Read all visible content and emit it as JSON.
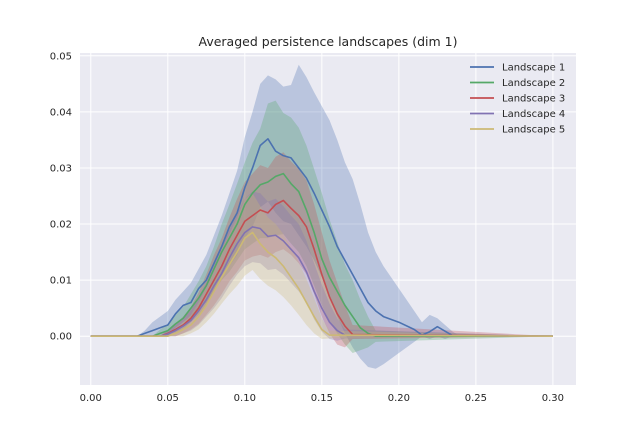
{
  "chart_data": {
    "type": "line",
    "title": "Averaged persistence landscapes (dim 1)",
    "xlabel": "",
    "ylabel": "",
    "xlim": [
      -0.007,
      0.315
    ],
    "ylim": [
      -0.0087,
      0.0505
    ],
    "xticks": [
      0.0,
      0.05,
      0.1,
      0.15,
      0.2,
      0.25,
      0.3
    ],
    "xtick_labels": [
      "0.00",
      "0.05",
      "0.10",
      "0.15",
      "0.20",
      "0.25",
      "0.30"
    ],
    "yticks": [
      0.0,
      0.01,
      0.02,
      0.03,
      0.04,
      0.05
    ],
    "ytick_labels": [
      "0.00",
      "0.01",
      "0.02",
      "0.03",
      "0.04",
      "0.05"
    ],
    "grid": true,
    "legend_position": "top-right",
    "bands": "mean ± standard deviation (shaded)",
    "series": [
      {
        "name": "Landscape 1",
        "color": "#4c72b0",
        "x": [
          0,
          0.03,
          0.035,
          0.04,
          0.045,
          0.05,
          0.055,
          0.06,
          0.065,
          0.07,
          0.075,
          0.08,
          0.085,
          0.09,
          0.095,
          0.1,
          0.105,
          0.11,
          0.115,
          0.12,
          0.125,
          0.13,
          0.135,
          0.14,
          0.145,
          0.15,
          0.155,
          0.16,
          0.165,
          0.17,
          0.175,
          0.18,
          0.185,
          0.19,
          0.2,
          0.21,
          0.215,
          0.22,
          0.225,
          0.23,
          0.235,
          0.24,
          0.3
        ],
        "y": [
          0,
          0,
          0.0005,
          0.001,
          0.0015,
          0.002,
          0.004,
          0.0055,
          0.006,
          0.0085,
          0.01,
          0.013,
          0.016,
          0.0195,
          0.022,
          0.0265,
          0.03,
          0.034,
          0.0352,
          0.033,
          0.0322,
          0.0318,
          0.03,
          0.0282,
          0.0255,
          0.0225,
          0.0195,
          0.016,
          0.0135,
          0.011,
          0.0085,
          0.006,
          0.0045,
          0.0035,
          0.0025,
          0.0012,
          0.0002,
          0.0008,
          0.0017,
          0.0009,
          0.0001,
          0,
          0
        ],
        "lower": [
          0,
          0,
          0,
          0,
          0,
          0,
          0.0015,
          0.0025,
          0.0035,
          0.005,
          0.006,
          0.008,
          0.0105,
          0.0125,
          0.0145,
          0.0175,
          0.0195,
          0.023,
          0.024,
          0.022,
          0.0205,
          0.02,
          0.018,
          0.016,
          0.0135,
          0.0105,
          0.007,
          0.0035,
          0.0005,
          -0.002,
          -0.004,
          -0.0055,
          -0.0058,
          -0.005,
          -0.003,
          -0.001,
          0,
          -0.0005,
          0,
          -0.0005,
          0,
          0,
          0
        ],
        "upper": [
          0,
          0,
          0.001,
          0.0025,
          0.0035,
          0.0045,
          0.0065,
          0.008,
          0.0095,
          0.012,
          0.0145,
          0.018,
          0.0215,
          0.0255,
          0.0295,
          0.0355,
          0.04,
          0.045,
          0.0465,
          0.0458,
          0.0445,
          0.0448,
          0.0484,
          0.0462,
          0.0435,
          0.041,
          0.0385,
          0.035,
          0.031,
          0.028,
          0.0235,
          0.0185,
          0.015,
          0.0125,
          0.0085,
          0.0045,
          0.0025,
          0.0038,
          0.0032,
          0.002,
          0.0008,
          0,
          0
        ]
      },
      {
        "name": "Landscape 2",
        "color": "#55a868",
        "x": [
          0,
          0.04,
          0.045,
          0.05,
          0.055,
          0.06,
          0.065,
          0.07,
          0.075,
          0.08,
          0.085,
          0.09,
          0.095,
          0.1,
          0.105,
          0.11,
          0.115,
          0.12,
          0.125,
          0.13,
          0.135,
          0.14,
          0.145,
          0.15,
          0.155,
          0.16,
          0.165,
          0.17,
          0.175,
          0.18,
          0.185,
          0.3
        ],
        "y": [
          0,
          0,
          0.0005,
          0.001,
          0.0022,
          0.0032,
          0.005,
          0.0068,
          0.009,
          0.012,
          0.015,
          0.0175,
          0.02,
          0.0235,
          0.0255,
          0.027,
          0.0275,
          0.0285,
          0.029,
          0.0272,
          0.0258,
          0.0225,
          0.0185,
          0.0138,
          0.0105,
          0.008,
          0.0055,
          0.0035,
          0.0015,
          0.0005,
          0,
          0
        ],
        "lower": [
          0,
          0,
          0,
          0,
          0.0005,
          0.0012,
          0.0025,
          0.0038,
          0.0055,
          0.008,
          0.01,
          0.0115,
          0.0135,
          0.0155,
          0.0165,
          0.0175,
          0.0175,
          0.018,
          0.0182,
          0.0165,
          0.015,
          0.0125,
          0.009,
          0.0055,
          0.0025,
          0.0005,
          -0.0015,
          -0.003,
          -0.0025,
          -0.002,
          -0.001,
          0
        ],
        "upper": [
          0,
          0,
          0.0012,
          0.0022,
          0.0038,
          0.0052,
          0.0075,
          0.0098,
          0.0125,
          0.016,
          0.02,
          0.0235,
          0.0272,
          0.031,
          0.0345,
          0.037,
          0.0415,
          0.042,
          0.0398,
          0.039,
          0.0372,
          0.034,
          0.0298,
          0.0255,
          0.0208,
          0.0168,
          0.0128,
          0.01,
          0.0065,
          0.0035,
          0.001,
          0
        ]
      },
      {
        "name": "Landscape 3",
        "color": "#c44e52",
        "x": [
          0,
          0.045,
          0.05,
          0.055,
          0.06,
          0.065,
          0.07,
          0.075,
          0.08,
          0.085,
          0.09,
          0.095,
          0.1,
          0.105,
          0.11,
          0.115,
          0.12,
          0.125,
          0.13,
          0.135,
          0.14,
          0.145,
          0.15,
          0.155,
          0.16,
          0.165,
          0.17,
          0.3
        ],
        "y": [
          0,
          0,
          0.0005,
          0.0012,
          0.002,
          0.0032,
          0.005,
          0.0075,
          0.01,
          0.0125,
          0.0155,
          0.018,
          0.0205,
          0.0215,
          0.0225,
          0.022,
          0.0235,
          0.0242,
          0.0228,
          0.0215,
          0.0195,
          0.0155,
          0.011,
          0.007,
          0.004,
          0.0018,
          0.0003,
          0
        ],
        "lower": [
          0,
          0,
          0,
          0,
          0.0005,
          0.0012,
          0.0022,
          0.0038,
          0.0055,
          0.0075,
          0.0098,
          0.0115,
          0.0135,
          0.0142,
          0.0145,
          0.014,
          0.015,
          0.0155,
          0.0145,
          0.013,
          0.011,
          0.0075,
          0.0035,
          0.0005,
          -0.0015,
          -0.002,
          -0.0005,
          0
        ],
        "upper": [
          0,
          0,
          0.0012,
          0.0022,
          0.0035,
          0.0052,
          0.0078,
          0.011,
          0.0145,
          0.0175,
          0.0212,
          0.0245,
          0.0275,
          0.029,
          0.0305,
          0.03,
          0.032,
          0.0328,
          0.0312,
          0.0298,
          0.0278,
          0.0235,
          0.0185,
          0.0135,
          0.0095,
          0.0055,
          0.002,
          0
        ]
      },
      {
        "name": "Landscape 4",
        "color": "#8172b2",
        "x": [
          0,
          0.045,
          0.05,
          0.055,
          0.06,
          0.065,
          0.07,
          0.075,
          0.08,
          0.085,
          0.09,
          0.095,
          0.1,
          0.105,
          0.11,
          0.115,
          0.12,
          0.125,
          0.13,
          0.135,
          0.14,
          0.145,
          0.15,
          0.155,
          0.16,
          0.165,
          0.3
        ],
        "y": [
          0,
          0,
          0.0004,
          0.001,
          0.0018,
          0.0028,
          0.0045,
          0.0065,
          0.009,
          0.0112,
          0.014,
          0.0165,
          0.0185,
          0.0195,
          0.0192,
          0.0178,
          0.018,
          0.017,
          0.0155,
          0.014,
          0.0115,
          0.008,
          0.005,
          0.0025,
          0.001,
          0.0002,
          0
        ],
        "lower": [
          0,
          0,
          0,
          0,
          0.0005,
          0.001,
          0.002,
          0.0035,
          0.005,
          0.0068,
          0.009,
          0.011,
          0.0125,
          0.0132,
          0.013,
          0.0118,
          0.012,
          0.011,
          0.0095,
          0.008,
          0.006,
          0.003,
          0.0008,
          -0.0005,
          -0.0008,
          -0.0004,
          0
        ],
        "upper": [
          0,
          0,
          0.001,
          0.002,
          0.0032,
          0.0046,
          0.007,
          0.0095,
          0.013,
          0.0158,
          0.019,
          0.022,
          0.0245,
          0.0258,
          0.0255,
          0.024,
          0.0245,
          0.0232,
          0.0215,
          0.02,
          0.017,
          0.013,
          0.0092,
          0.0058,
          0.0032,
          0.0012,
          0
        ]
      },
      {
        "name": "Landscape 5",
        "color": "#ccb974",
        "x": [
          0,
          0.05,
          0.055,
          0.06,
          0.065,
          0.07,
          0.075,
          0.08,
          0.085,
          0.09,
          0.095,
          0.1,
          0.105,
          0.11,
          0.115,
          0.12,
          0.125,
          0.13,
          0.135,
          0.14,
          0.145,
          0.15,
          0.155,
          0.3
        ],
        "y": [
          0,
          0,
          0.0005,
          0.0012,
          0.002,
          0.0035,
          0.0055,
          0.008,
          0.0105,
          0.0128,
          0.015,
          0.0175,
          0.0185,
          0.0165,
          0.015,
          0.014,
          0.0125,
          0.0105,
          0.0085,
          0.006,
          0.0035,
          0.0012,
          0.0002,
          0
        ],
        "lower": [
          0,
          0,
          0,
          0,
          0.0005,
          0.0012,
          0.0025,
          0.004,
          0.0058,
          0.0075,
          0.009,
          0.0108,
          0.0118,
          0.0102,
          0.009,
          0.0082,
          0.007,
          0.0055,
          0.0038,
          0.002,
          0.0005,
          -0.0005,
          -0.0004,
          0
        ],
        "upper": [
          0,
          0,
          0.0012,
          0.0025,
          0.0038,
          0.006,
          0.0088,
          0.0122,
          0.0155,
          0.0182,
          0.0212,
          0.0245,
          0.0255,
          0.0232,
          0.0212,
          0.02,
          0.0182,
          0.0158,
          0.0132,
          0.0102,
          0.0068,
          0.0032,
          0.001,
          0
        ]
      }
    ]
  }
}
